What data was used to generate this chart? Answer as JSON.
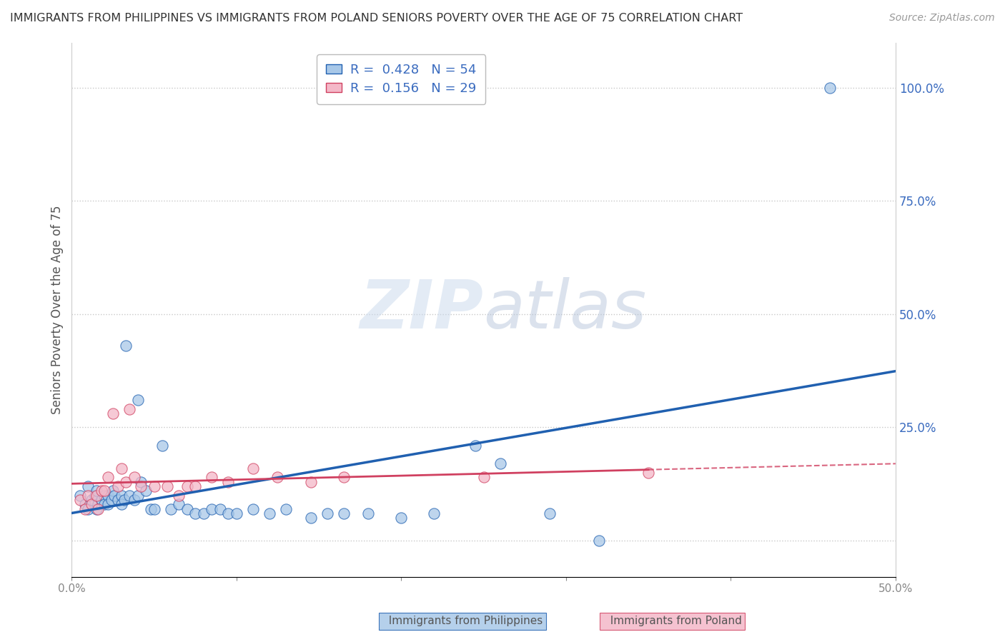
{
  "title": "IMMIGRANTS FROM PHILIPPINES VS IMMIGRANTS FROM POLAND SENIORS POVERTY OVER THE AGE OF 75 CORRELATION CHART",
  "source": "Source: ZipAtlas.com",
  "ylabel": "Seniors Poverty Over the Age of 75",
  "ytick_labels": [
    "",
    "25.0%",
    "50.0%",
    "75.0%",
    "100.0%"
  ],
  "ytick_values": [
    0.0,
    0.25,
    0.5,
    0.75,
    1.0
  ],
  "xtick_labels": [
    "0.0%",
    "",
    "",
    "",
    "",
    "50.0%"
  ],
  "xtick_values": [
    0.0,
    0.1,
    0.2,
    0.3,
    0.4,
    0.5
  ],
  "xlim": [
    0.0,
    0.5
  ],
  "ylim": [
    -0.08,
    1.1
  ],
  "philippines_R": 0.428,
  "philippines_N": 54,
  "poland_R": 0.156,
  "poland_N": 29,
  "philippines_color": "#a8c8e8",
  "poland_color": "#f4b8c8",
  "philippines_line_color": "#2060b0",
  "poland_line_color": "#d04060",
  "philippines_x": [
    0.005,
    0.008,
    0.01,
    0.01,
    0.012,
    0.014,
    0.015,
    0.015,
    0.016,
    0.018,
    0.02,
    0.02,
    0.022,
    0.022,
    0.024,
    0.025,
    0.026,
    0.028,
    0.03,
    0.03,
    0.032,
    0.033,
    0.035,
    0.038,
    0.04,
    0.04,
    0.042,
    0.045,
    0.048,
    0.05,
    0.055,
    0.06,
    0.065,
    0.07,
    0.075,
    0.08,
    0.085,
    0.09,
    0.095,
    0.1,
    0.11,
    0.12,
    0.13,
    0.145,
    0.155,
    0.165,
    0.18,
    0.2,
    0.22,
    0.245,
    0.26,
    0.29,
    0.32,
    0.46
  ],
  "philippines_y": [
    0.1,
    0.08,
    0.12,
    0.07,
    0.09,
    0.1,
    0.11,
    0.07,
    0.08,
    0.09,
    0.1,
    0.08,
    0.1,
    0.08,
    0.09,
    0.11,
    0.1,
    0.09,
    0.1,
    0.08,
    0.09,
    0.43,
    0.1,
    0.09,
    0.1,
    0.31,
    0.13,
    0.11,
    0.07,
    0.07,
    0.21,
    0.07,
    0.08,
    0.07,
    0.06,
    0.06,
    0.07,
    0.07,
    0.06,
    0.06,
    0.07,
    0.06,
    0.07,
    0.05,
    0.06,
    0.06,
    0.06,
    0.05,
    0.06,
    0.21,
    0.17,
    0.06,
    0.0,
    1.0
  ],
  "poland_x": [
    0.005,
    0.008,
    0.01,
    0.012,
    0.015,
    0.016,
    0.018,
    0.02,
    0.022,
    0.025,
    0.028,
    0.03,
    0.033,
    0.035,
    0.038,
    0.042,
    0.05,
    0.058,
    0.065,
    0.07,
    0.075,
    0.085,
    0.095,
    0.11,
    0.125,
    0.145,
    0.165,
    0.25,
    0.35
  ],
  "poland_y": [
    0.09,
    0.07,
    0.1,
    0.08,
    0.1,
    0.07,
    0.11,
    0.11,
    0.14,
    0.28,
    0.12,
    0.16,
    0.13,
    0.29,
    0.14,
    0.12,
    0.12,
    0.12,
    0.1,
    0.12,
    0.12,
    0.14,
    0.13,
    0.16,
    0.14,
    0.13,
    0.14,
    0.14,
    0.15
  ],
  "watermark_zip": "ZIP",
  "watermark_atlas": "atlas",
  "background_color": "#ffffff",
  "grid_color": "#c8c8c8",
  "title_color": "#333333",
  "axis_label_color": "#555555",
  "tick_color": "#888888",
  "legend_text_color": "#3a6bbf"
}
